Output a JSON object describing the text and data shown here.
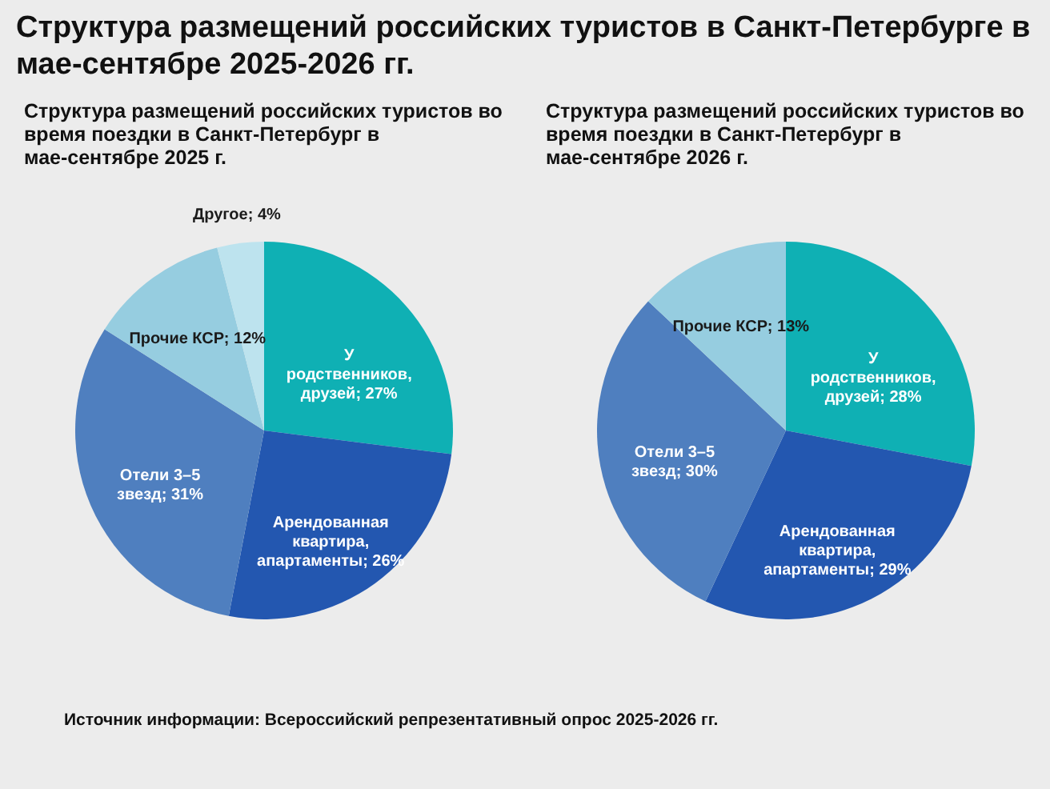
{
  "chart_data": [
    {
      "type": "pie",
      "title": "Структура размещений российских туристов в Санкт-Петербурге в мае-сентябре 2025-2026 гг.",
      "subtitle": "Структура размещений российских туристов во время поездки в Санкт-Петербург в мае-сентябре 2025 г.",
      "annotations": [
        "Источник информации: Всероссийский репрезентативный опрос 2025-2026 гг."
      ],
      "categories": [
        "У родственников, друзей",
        "Арендованная квартира, апартаменты",
        "Отели 3–5 звезд",
        "Прочие КСР",
        "Другое"
      ],
      "values": [
        27,
        26,
        31,
        12,
        4
      ],
      "value_labels": [
        "27%",
        "26%",
        "31%",
        "12%",
        "4%"
      ],
      "colors": [
        "#0fb0b4",
        "#2357b0",
        "#4f7fbf",
        "#96cde0",
        "#bde3ee"
      ]
    },
    {
      "type": "pie",
      "subtitle": "Структура размещений российских туристов во время поездки в Санкт-Петербург в мае-сентябре 2026 г.",
      "categories": [
        "У родственников, друзей",
        "Арендованная квартира, апартаменты",
        "Отели 3–5 звезд",
        "Прочие КСР"
      ],
      "values": [
        28,
        29,
        30,
        13
      ],
      "value_labels": [
        "28%",
        "29%",
        "30%",
        "13%"
      ],
      "colors": [
        "#0fb0b4",
        "#2357b0",
        "#4f7fbf",
        "#96cde0"
      ]
    }
  ]
}
